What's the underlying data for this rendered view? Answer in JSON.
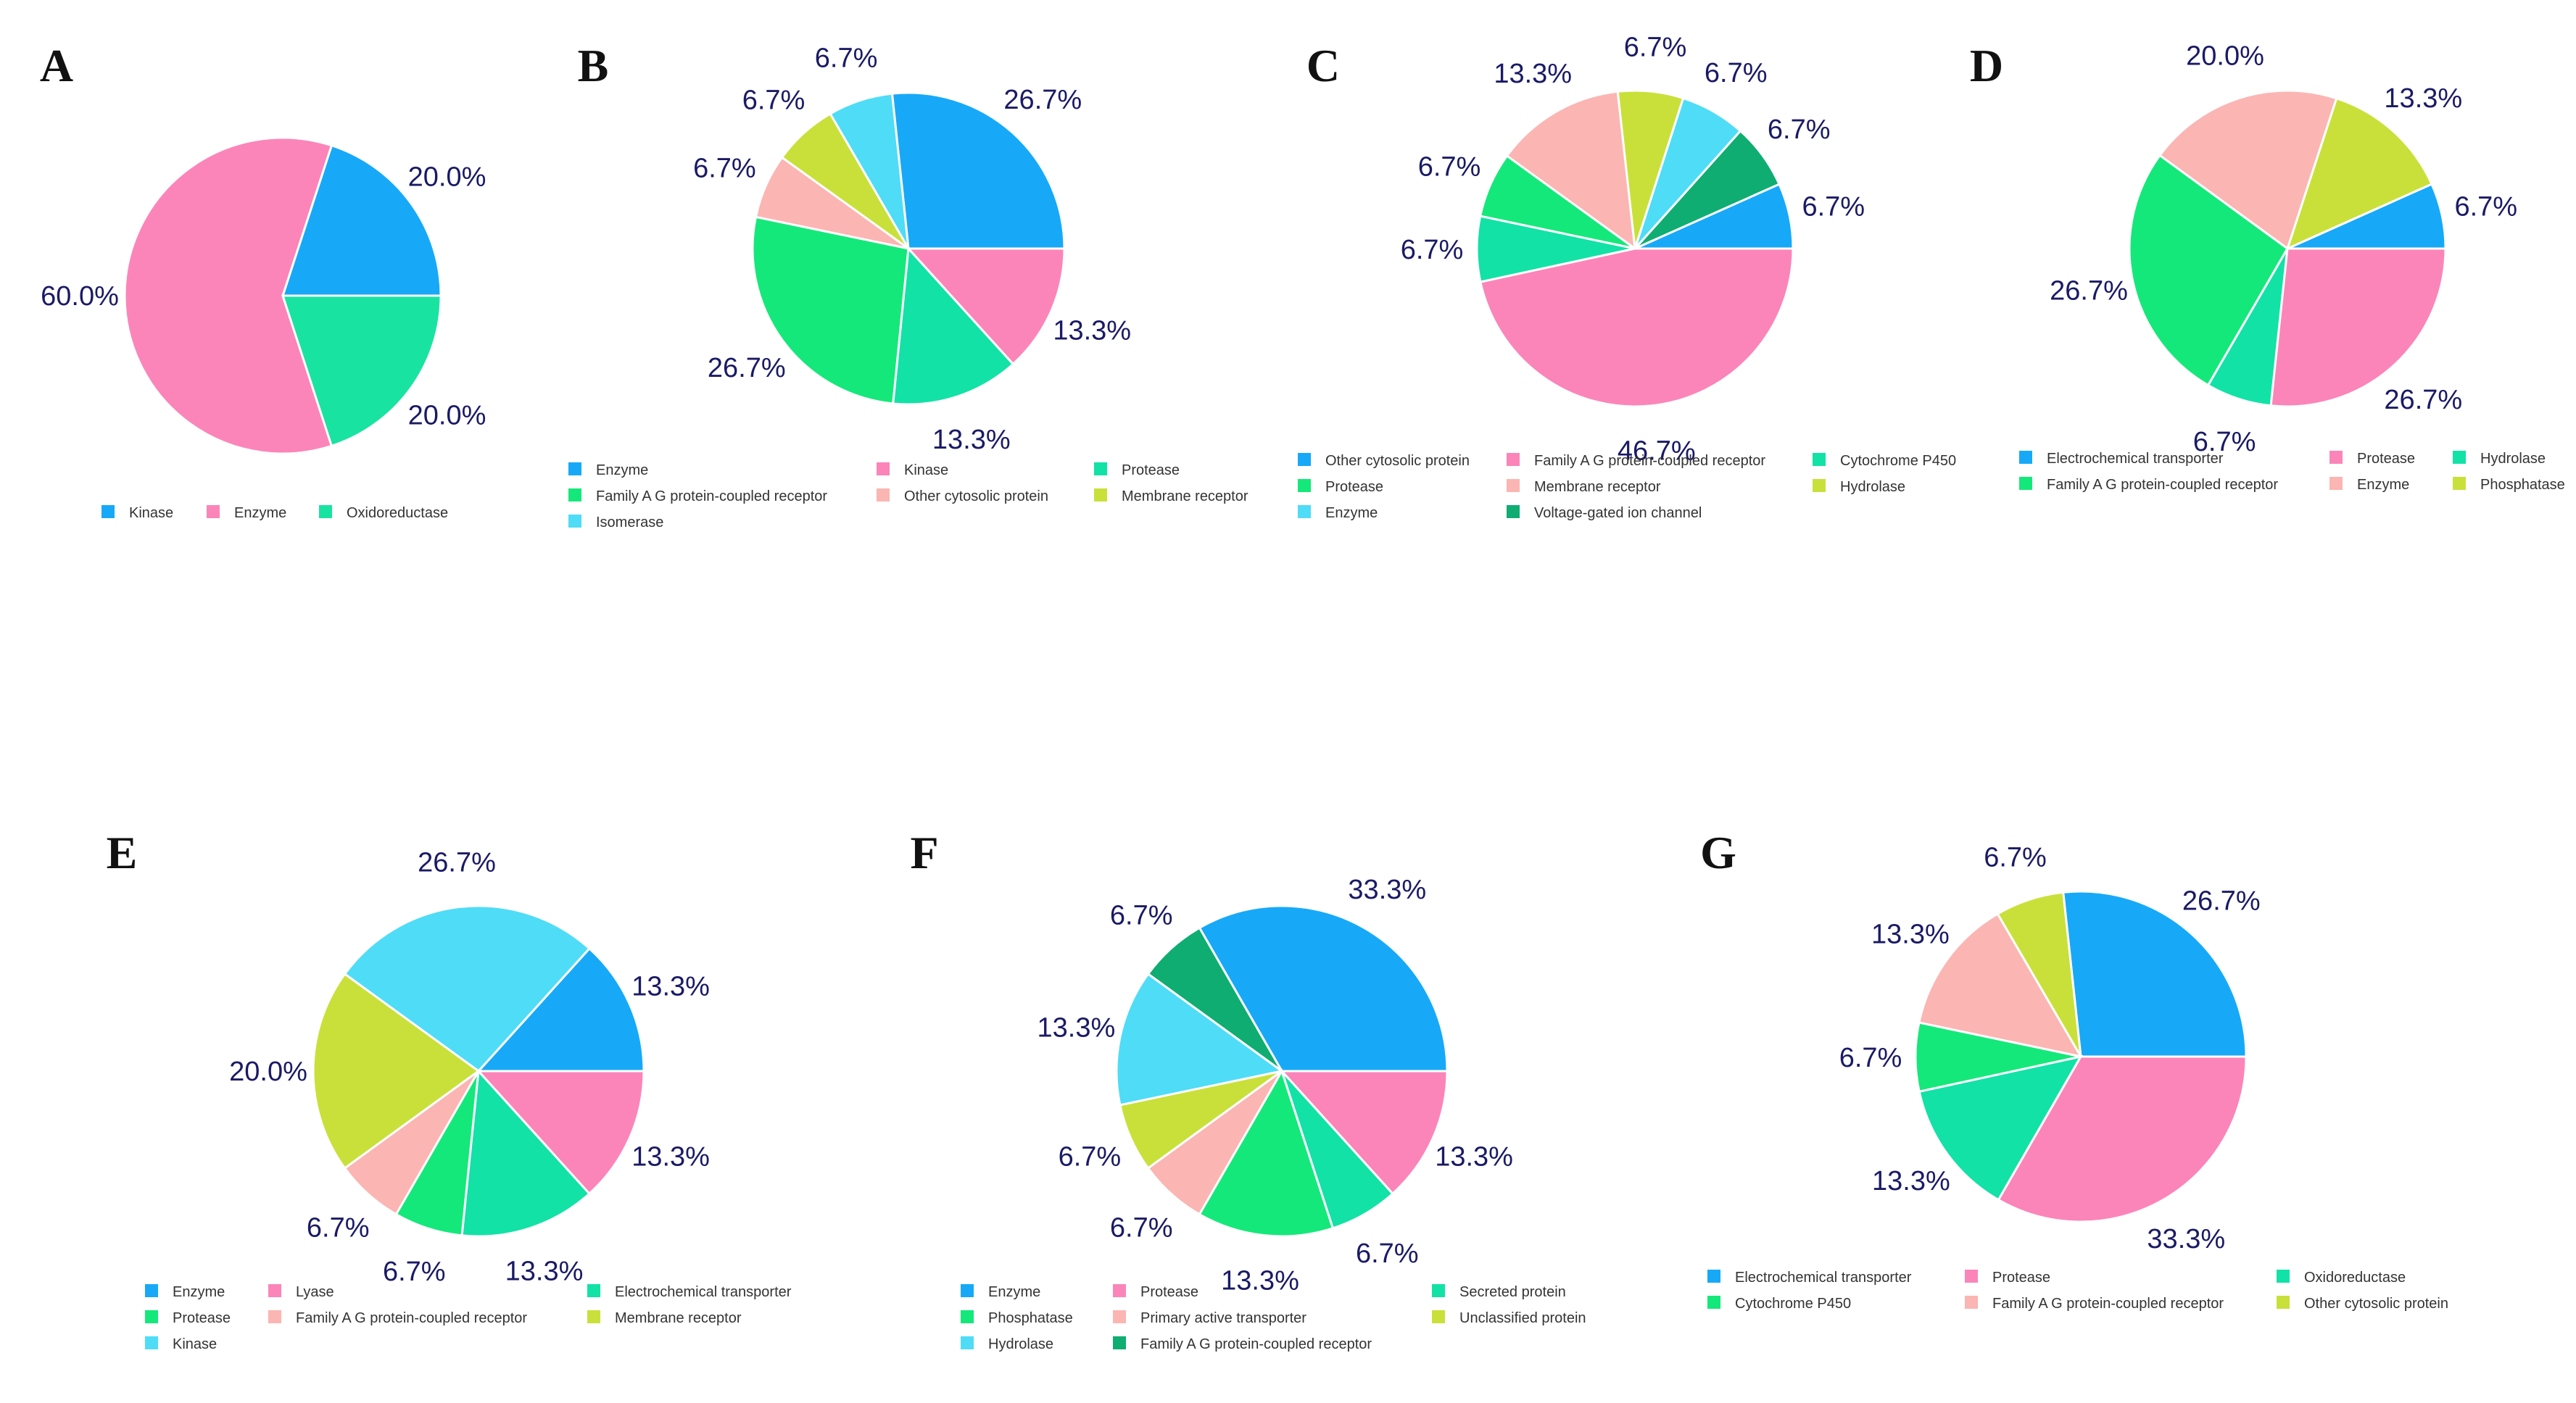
{
  "chart_data": [
    {
      "type": "pie",
      "panel": "A",
      "categories": [
        "Kinase",
        "Enzyme",
        "Oxidoreductase"
      ],
      "values": [
        20.0,
        60.0,
        20.0
      ],
      "labels": [
        "20.0%",
        "60.0%",
        "20.0%"
      ],
      "colors": [
        "#17a9f7",
        "#fb85b9",
        "#19e3a1"
      ],
      "legend": "bottom"
    },
    {
      "type": "pie",
      "panel": "B",
      "categories": [
        "Enzyme",
        "Isomerase",
        "Membrane receptor",
        "Other cytosolic protein",
        "Family A G protein-coupled receptor",
        "Protease",
        "Kinase"
      ],
      "values": [
        26.7,
        6.7,
        6.7,
        6.7,
        26.7,
        13.3,
        13.3
      ],
      "labels": [
        "26.7%",
        "6.7%",
        "6.7%",
        "6.7%",
        "26.7%",
        "13.3%",
        "13.3%"
      ],
      "colors": [
        "#17a9f7",
        "#4fdcf7",
        "#c9e03a",
        "#fbb5b3",
        "#15e87a",
        "#12e2a6",
        "#fb85b9"
      ],
      "legend_order": [
        "Enzyme",
        "Kinase",
        "Protease",
        "Family A G protein-coupled receptor",
        "Other cytosolic protein",
        "Membrane receptor",
        "Isomerase"
      ],
      "legend": "bottom"
    },
    {
      "type": "pie",
      "panel": "C",
      "categories": [
        "Other cytosolic protein",
        "Voltage-gated ion channel",
        "Enzyme",
        "Hydrolase",
        "Membrane receptor",
        "Protease",
        "Cytochrome P450",
        "Family A G protein-coupled receptor"
      ],
      "values": [
        6.7,
        6.7,
        6.7,
        6.7,
        13.3,
        6.7,
        6.7,
        46.7
      ],
      "labels": [
        "6.7%",
        "6.7%",
        "6.7%",
        "6.7%",
        "13.3%",
        "6.7%",
        "6.7%",
        "46.7%"
      ],
      "colors": [
        "#17a9f7",
        "#0fad72",
        "#4fdcf7",
        "#c9e03a",
        "#fbb5b3",
        "#15e87a",
        "#12e2a6",
        "#fb85b9"
      ],
      "legend_order": [
        "Other cytosolic protein",
        "Family A G protein-coupled receptor",
        "Cytochrome P450",
        "Protease",
        "Membrane receptor",
        "Hydrolase",
        "Enzyme",
        "Voltage-gated ion channel"
      ],
      "legend": "bottom"
    },
    {
      "type": "pie",
      "panel": "D",
      "categories": [
        "Electrochemical transporter",
        "Phosphatase",
        "Enzyme",
        "Family A G protein-coupled receptor",
        "Hydrolase",
        "Protease"
      ],
      "values": [
        6.7,
        13.3,
        20.0,
        26.7,
        6.7,
        26.7
      ],
      "labels": [
        "6.7%",
        "13.3%",
        "20.0%",
        "26.7%",
        "6.7%",
        "26.7%"
      ],
      "colors": [
        "#17a9f7",
        "#c9e03a",
        "#fbb5b3",
        "#15e87a",
        "#12e2a6",
        "#fb85b9"
      ],
      "legend_order": [
        "Electrochemical transporter",
        "Protease",
        "Hydrolase",
        "Family A G protein-coupled receptor",
        "Enzyme",
        "Phosphatase"
      ],
      "legend": "bottom"
    },
    {
      "type": "pie",
      "panel": "E",
      "categories": [
        "Enzyme",
        "Kinase",
        "Membrane receptor",
        "Family A G protein-coupled receptor",
        "Protease",
        "Electrochemical transporter",
        "Lyase"
      ],
      "values": [
        13.3,
        26.7,
        20.0,
        6.7,
        6.7,
        13.3,
        13.3
      ],
      "labels": [
        "13.3%",
        "26.7%",
        "20.0%",
        "6.7%",
        "6.7%",
        "13.3%",
        "13.3%"
      ],
      "colors": [
        "#17a9f7",
        "#4fdcf7",
        "#c9e03a",
        "#fbb5b3",
        "#15e87a",
        "#12e2a6",
        "#fb85b9"
      ],
      "legend_order": [
        "Enzyme",
        "Lyase",
        "Electrochemical transporter",
        "Protease",
        "Family A G protein-coupled receptor",
        "Membrane receptor",
        "Kinase"
      ],
      "legend": "bottom"
    },
    {
      "type": "pie",
      "panel": "F",
      "categories": [
        "Enzyme",
        "Family A G protein-coupled receptor",
        "Hydrolase",
        "Unclassified protein",
        "Primary active transporter",
        "Phosphatase",
        "Secreted protein",
        "Protease"
      ],
      "values": [
        33.3,
        6.7,
        13.3,
        6.7,
        6.7,
        13.3,
        6.7,
        13.3
      ],
      "labels": [
        "33.3%",
        "6.7%",
        "13.3%",
        "6.7%",
        "6.7%",
        "13.3%",
        "6.7%",
        "13.3%"
      ],
      "colors": [
        "#17a9f7",
        "#0fad72",
        "#4fdcf7",
        "#c9e03a",
        "#fbb5b3",
        "#15e87a",
        "#12e2a6",
        "#fb85b9"
      ],
      "legend_order": [
        "Enzyme",
        "Protease",
        "Secreted protein",
        "Phosphatase",
        "Primary active transporter",
        "Unclassified protein",
        "Hydrolase",
        "Family A G protein-coupled receptor"
      ],
      "legend": "bottom"
    },
    {
      "type": "pie",
      "panel": "G",
      "categories": [
        "Electrochemical transporter",
        "Other cytosolic protein",
        "Family A G protein-coupled receptor",
        "Cytochrome P450",
        "Oxidoreductase",
        "Protease"
      ],
      "values": [
        26.7,
        6.7,
        13.3,
        6.7,
        13.3,
        33.3
      ],
      "labels": [
        "26.7%",
        "6.7%",
        "13.3%",
        "6.7%",
        "13.3%",
        "33.3%"
      ],
      "colors": [
        "#17a9f7",
        "#c9e03a",
        "#fbb5b3",
        "#15e87a",
        "#12e2a6",
        "#fb85b9"
      ],
      "legend_order": [
        "Electrochemical transporter",
        "Protease",
        "Oxidoreductase",
        "Cytochrome P450",
        "Family A G protein-coupled receptor",
        "Other cytosolic protein"
      ],
      "legend": "bottom"
    }
  ]
}
